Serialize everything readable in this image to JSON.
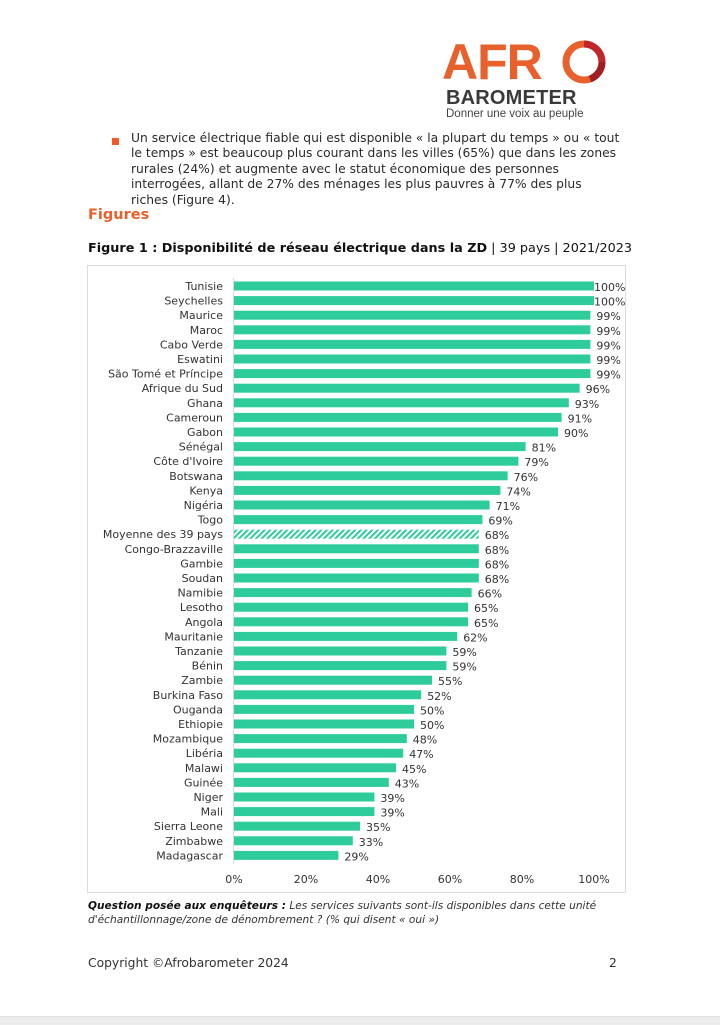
{
  "logo": {
    "brand_top": "AFRO",
    "brand_afr": "AFR",
    "brand_bottom": "BAROMETER",
    "tagline": "Donner une voix au peuple",
    "colors": {
      "orange": "#e8602b",
      "red": "#c0272d",
      "gray": "#3a3a3a"
    }
  },
  "bullet": {
    "text": "Un service électrique fiable qui est disponible « la plupart du temps » ou « tout le temps » est beaucoup plus courant dans les villes (65%) que dans les zones rurales (24%) et augmente avec le statut économique des personnes interrogées, allant de 27% des ménages les plus pauvres à 77% des plus riches (Figure 4)."
  },
  "section": {
    "title": "Figures"
  },
  "figure": {
    "title_bold": "Figure 1 : Disponibilité de réseau électrique dans la ZD",
    "title_rest": " | 39 pays | 2021/2023"
  },
  "chart_data": {
    "type": "bar",
    "orientation": "horizontal",
    "title": "Figure 1 : Disponibilité de réseau électrique dans la ZD | 39 pays | 2021/2023",
    "xlabel": "",
    "ylabel": "",
    "xlim": [
      0,
      100
    ],
    "x_ticks": [
      "0%",
      "20%",
      "40%",
      "60%",
      "80%",
      "100%"
    ],
    "x_tick_values": [
      0,
      20,
      40,
      60,
      80,
      100
    ],
    "grid": false,
    "bar_color": "#2ecc9a",
    "highlight": {
      "category": "Moyenne des 39 pays",
      "style": "hatched"
    },
    "categories": [
      "Tunisie",
      "Seychelles",
      "Maurice",
      "Maroc",
      "Cabo Verde",
      "Eswatini",
      "São Tomé et Príncipe",
      "Afrique du Sud",
      "Ghana",
      "Cameroun",
      "Gabon",
      "Sénégal",
      "Côte d'Ivoire",
      "Botswana",
      "Kenya",
      "Nigéria",
      "Togo",
      "Moyenne des 39 pays",
      "Congo-Brazzaville",
      "Gambie",
      "Soudan",
      "Namibie",
      "Lesotho",
      "Angola",
      "Mauritanie",
      "Tanzanie",
      "Bénin",
      "Zambie",
      "Burkina Faso",
      "Ouganda",
      "Ethiopie",
      "Mozambique",
      "Libéria",
      "Malawi",
      "Guinée",
      "Niger",
      "Mali",
      "Sierra Leone",
      "Zimbabwe",
      "Madagascar"
    ],
    "values": [
      100,
      100,
      99,
      99,
      99,
      99,
      99,
      96,
      93,
      91,
      90,
      81,
      79,
      76,
      74,
      71,
      69,
      68,
      68,
      68,
      68,
      66,
      65,
      65,
      62,
      59,
      59,
      55,
      52,
      50,
      50,
      48,
      47,
      45,
      43,
      39,
      39,
      35,
      33,
      29
    ],
    "value_labels": [
      "100%",
      "100%",
      "99%",
      "99%",
      "99%",
      "99%",
      "99%",
      "96%",
      "93%",
      "91%",
      "90%",
      "81%",
      "79%",
      "76%",
      "74%",
      "71%",
      "69%",
      "68%",
      "68%",
      "68%",
      "68%",
      "66%",
      "65%",
      "65%",
      "62%",
      "59%",
      "59%",
      "55%",
      "52%",
      "50%",
      "50%",
      "48%",
      "47%",
      "45%",
      "43%",
      "39%",
      "39%",
      "35%",
      "33%",
      "29%"
    ]
  },
  "question": {
    "label": "Question posée aux enquêteurs :",
    "text": " Les services suivants sont-ils disponibles dans cette unité d'échantillonnage/zone de dénombrement ? (% qui disent « oui »)"
  },
  "footer": {
    "copyright": "Copyright ©Afrobarometer 2024",
    "page_number": "2"
  }
}
